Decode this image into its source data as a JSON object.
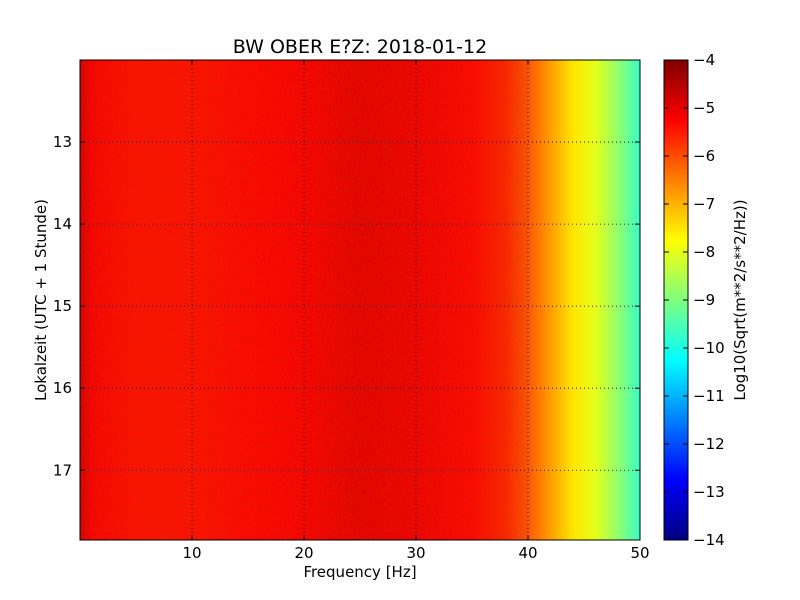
{
  "chart_data": {
    "type": "heatmap",
    "title": "BW OBER E?Z: 2018-01-12",
    "xlabel": "Frequency [Hz]",
    "ylabel": "Lokalzeit (UTC + 1 Stunde)",
    "xlim": [
      0,
      50
    ],
    "ylim": [
      17.85,
      12.0
    ],
    "x_ticks": [
      10,
      20,
      30,
      40,
      50
    ],
    "y_ticks": [
      13,
      14,
      15,
      16,
      17
    ],
    "grid": true,
    "colorbar": {
      "label": "Log10(Sqrt(m**2/s**2/Hz))",
      "range": [
        -14,
        -4
      ],
      "ticks": [
        -4,
        -5,
        -6,
        -7,
        -8,
        -9,
        -10,
        -11,
        -12,
        -13,
        -14
      ],
      "colormap": "jet"
    },
    "frequency_profile": {
      "frequency_hz": [
        0,
        1,
        5,
        10,
        15,
        20,
        25,
        30,
        35,
        38,
        40,
        42,
        44,
        46,
        48,
        50
      ],
      "log10_value": [
        -4.8,
        -5.2,
        -5.4,
        -5.4,
        -5.3,
        -5.2,
        -5.0,
        -5.1,
        -5.3,
        -5.6,
        -6.1,
        -6.8,
        -7.5,
        -8.0,
        -8.8,
        -9.7
      ]
    }
  }
}
